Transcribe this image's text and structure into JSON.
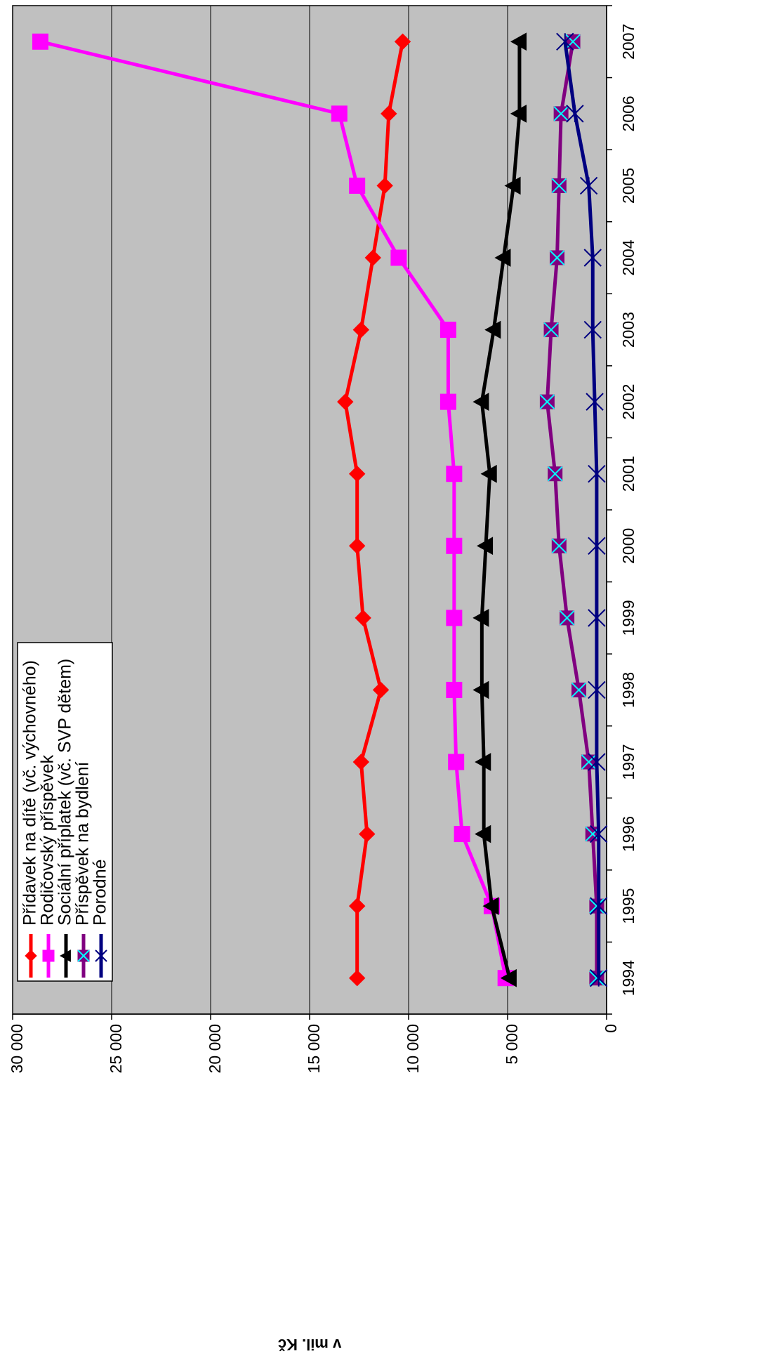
{
  "chart_data": {
    "type": "line",
    "orientation": "rotated-90-clockwise",
    "title": "",
    "xlabel": "",
    "ylabel": "v mil. Kč",
    "x": [
      "1994",
      "1995",
      "1996",
      "1997",
      "1998",
      "1999",
      "2000",
      "2001",
      "2002",
      "2003",
      "2004",
      "2005",
      "2006",
      "2007"
    ],
    "ylim": [
      0,
      30000
    ],
    "yticks": [
      0,
      5000,
      10000,
      15000,
      20000,
      25000,
      30000
    ],
    "ytick_labels": [
      "0",
      "5 000",
      "10 000",
      "15 000",
      "20 000",
      "25 000",
      "30 000"
    ],
    "grid": true,
    "plot_background": "#c0c0c0",
    "legend_placement": "top-left",
    "series": [
      {
        "name": "Přídavek na dítě (vč. výchovného)",
        "color": "#ff0000",
        "marker": "diamond",
        "values": [
          12600,
          12600,
          12100,
          12400,
          11400,
          12300,
          12600,
          12600,
          13200,
          12400,
          11800,
          11200,
          11000,
          10300
        ]
      },
      {
        "name": "Rodičovský příspěvek",
        "color": "#ff00ff",
        "marker": "square",
        "values": [
          5100,
          5800,
          7300,
          7600,
          7700,
          7700,
          7700,
          7700,
          8000,
          8000,
          10500,
          12600,
          13500,
          28600
        ]
      },
      {
        "name": "Sociální příplatek (vč. SVP dětem)",
        "color": "#000000",
        "marker": "triangle",
        "values": [
          4900,
          5800,
          6200,
          6200,
          6300,
          6300,
          6100,
          5900,
          6300,
          5700,
          5200,
          4700,
          4400,
          4400
        ]
      },
      {
        "name": "Příspěvek na bydlení",
        "color": "#800080",
        "marker": "x-square",
        "values": [
          500,
          500,
          700,
          900,
          1400,
          2000,
          2400,
          2600,
          3000,
          2800,
          2500,
          2400,
          2300,
          1700
        ]
      },
      {
        "name": "Porodné",
        "color": "#000080",
        "marker": "star",
        "values": [
          400,
          400,
          400,
          500,
          500,
          500,
          500,
          500,
          600,
          700,
          700,
          900,
          1600,
          2100
        ]
      }
    ]
  }
}
